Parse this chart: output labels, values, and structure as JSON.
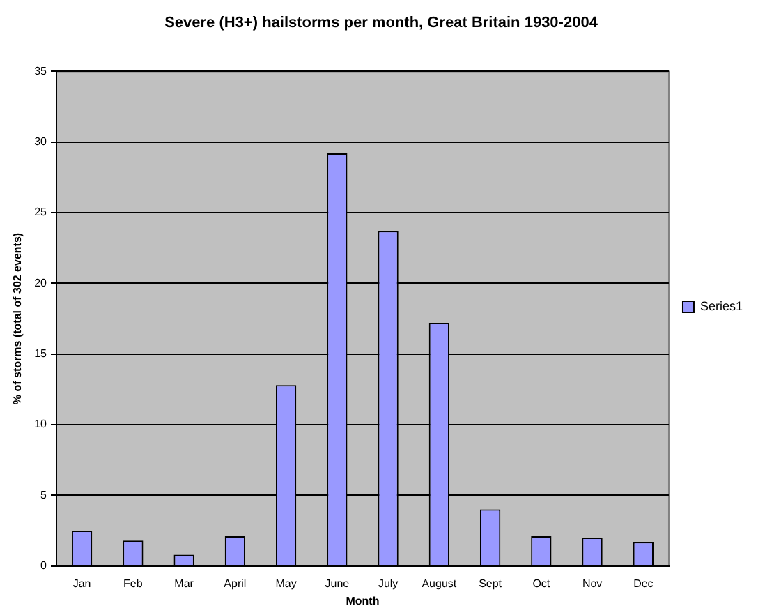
{
  "chart_data": {
    "type": "bar",
    "title": "Severe (H3+) hailstorms per month, Great Britain 1930-2004",
    "xlabel": "Month",
    "ylabel": "% of storms (total of 302 events)",
    "categories": [
      "Jan",
      "Feb",
      "Mar",
      "April",
      "May",
      "June",
      "July",
      "August",
      "Sept",
      "Oct",
      "Nov",
      "Dec"
    ],
    "series": [
      {
        "name": "Series1",
        "color": "#9999ff",
        "values": [
          2.5,
          1.8,
          0.8,
          2.1,
          12.8,
          29.2,
          23.7,
          17.2,
          4.0,
          2.1,
          2.0,
          1.7
        ]
      }
    ],
    "ylim": [
      0,
      35
    ],
    "yticks": [
      0,
      5,
      10,
      15,
      20,
      25,
      30,
      35
    ],
    "grid": "y",
    "legend": "right"
  }
}
